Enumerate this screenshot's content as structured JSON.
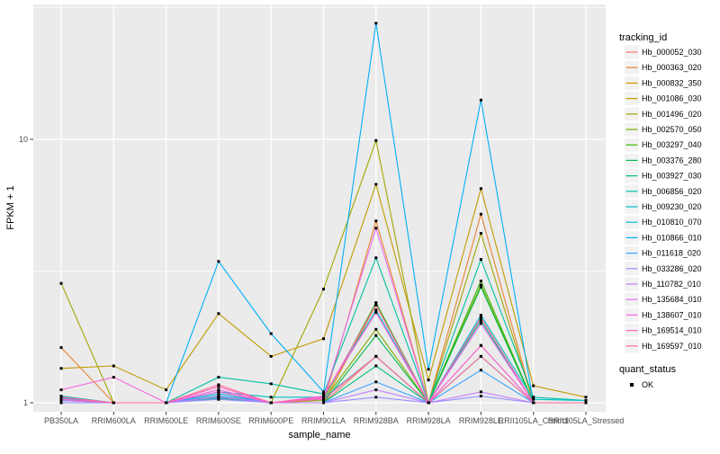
{
  "chart_data": {
    "type": "line",
    "xlabel": "sample_name",
    "ylabel": "FPKM + 1",
    "y_scale": "log10",
    "y_ticks": [
      "1",
      "10"
    ],
    "ylim": [
      0.93,
      31
    ],
    "categories": [
      "PB350LA",
      "RRIM600LA",
      "RRIM600LE",
      "RRIM600SE",
      "RRIM600PE",
      "RRIM901LA",
      "RRIM928BA",
      "RRIM928LA",
      "RRIM928LE",
      "RRII105LA_Control",
      "RRII105LA_Stressed"
    ],
    "series": [
      {
        "name": "Hb_000052_030",
        "color": "#F8766D",
        "values": [
          1.05,
          1.0,
          1.0,
          1.06,
          1.0,
          1.0,
          1.5,
          1.0,
          1.65,
          1.0,
          1.0
        ]
      },
      {
        "name": "Hb_000363_020",
        "color": "#EA8331",
        "values": [
          1.62,
          1.0,
          1.0,
          1.08,
          1.0,
          1.0,
          4.9,
          1.0,
          5.2,
          1.0,
          1.0
        ]
      },
      {
        "name": "Hb_000832_350",
        "color": "#D89000",
        "values": [
          1.0,
          1.0,
          1.0,
          1.1,
          1.0,
          1.0,
          2.35,
          1.0,
          2.1,
          1.0,
          1.0
        ]
      },
      {
        "name": "Hb_001086_030",
        "color": "#C09B00",
        "values": [
          1.35,
          1.38,
          1.12,
          2.18,
          1.5,
          1.75,
          6.75,
          1.22,
          6.5,
          1.16,
          1.05
        ]
      },
      {
        "name": "Hb_001496_020",
        "color": "#A3A500",
        "values": [
          2.84,
          1.0,
          1.0,
          1.05,
          1.0,
          2.7,
          9.9,
          1.0,
          4.4,
          1.0,
          1.0
        ]
      },
      {
        "name": "Hb_002570_050",
        "color": "#7CAE00",
        "values": [
          1.05,
          1.0,
          1.0,
          1.05,
          1.0,
          1.02,
          1.9,
          1.0,
          2.8,
          1.0,
          1.0
        ]
      },
      {
        "name": "Hb_003297_040",
        "color": "#39B600",
        "values": [
          1.04,
          1.0,
          1.0,
          1.05,
          1.0,
          1.03,
          2.4,
          1.0,
          2.9,
          1.0,
          1.0
        ]
      },
      {
        "name": "Hb_003376_280",
        "color": "#00BB4E",
        "values": [
          1.03,
          1.0,
          1.0,
          1.04,
          1.0,
          1.0,
          1.8,
          1.0,
          2.75,
          1.0,
          1.0
        ]
      },
      {
        "name": "Hb_003927_030",
        "color": "#00BF7D",
        "values": [
          1.02,
          1.0,
          1.0,
          1.04,
          1.0,
          1.0,
          1.38,
          1.0,
          2.05,
          1.0,
          1.0
        ]
      },
      {
        "name": "Hb_006856_020",
        "color": "#00C1A3",
        "values": [
          1.06,
          1.0,
          1.0,
          1.25,
          1.18,
          1.08,
          3.55,
          1.0,
          3.5,
          1.05,
          1.02
        ]
      },
      {
        "name": "Hb_009230_020",
        "color": "#00BFC4",
        "values": [
          1.03,
          1.0,
          1.0,
          1.1,
          1.05,
          1.05,
          2.25,
          1.0,
          2.15,
          1.03,
          1.02
        ]
      },
      {
        "name": "Hb_010810_070",
        "color": "#00BAE0",
        "values": [
          1.02,
          1.0,
          1.0,
          1.08,
          1.0,
          1.04,
          1.5,
          1.0,
          1.5,
          1.0,
          1.0
        ]
      },
      {
        "name": "Hb_010866_010",
        "color": "#00B0F6",
        "values": [
          1.05,
          1.0,
          1.0,
          3.44,
          1.83,
          1.1,
          27.6,
          1.34,
          14.1,
          1.0,
          1.0
        ]
      },
      {
        "name": "Hb_011618_020",
        "color": "#35A2FF",
        "values": [
          1.04,
          1.0,
          1.0,
          1.06,
          1.0,
          1.0,
          1.2,
          1.0,
          1.33,
          1.0,
          1.0
        ]
      },
      {
        "name": "Hb_033286_020",
        "color": "#9590FF",
        "values": [
          1.0,
          1.0,
          1.0,
          1.03,
          1.0,
          1.0,
          1.05,
          1.0,
          1.06,
          1.0,
          1.0
        ]
      },
      {
        "name": "Hb_110782_010",
        "color": "#C77CFF",
        "values": [
          1.02,
          1.0,
          1.0,
          1.05,
          1.0,
          1.0,
          1.12,
          1.0,
          1.1,
          1.0,
          1.0
        ]
      },
      {
        "name": "Hb_135684_010",
        "color": "#E76BF3",
        "values": [
          1.05,
          1.0,
          1.0,
          1.1,
          1.0,
          1.04,
          4.6,
          1.0,
          2.0,
          1.0,
          1.0
        ]
      },
      {
        "name": "Hb_138607_010",
        "color": "#FA62DB",
        "values": [
          1.12,
          1.25,
          1.0,
          1.12,
          1.0,
          1.06,
          2.2,
          1.0,
          1.65,
          1.0,
          1.0
        ]
      },
      {
        "name": "Hb_169514_010",
        "color": "#FF62BC",
        "values": [
          1.03,
          1.0,
          1.0,
          1.15,
          1.0,
          1.05,
          2.35,
          1.0,
          2.1,
          1.0,
          1.0
        ]
      },
      {
        "name": "Hb_169597_010",
        "color": "#FF6A98",
        "values": [
          1.05,
          1.0,
          1.0,
          1.17,
          1.0,
          1.03,
          1.5,
          1.0,
          1.5,
          1.0,
          1.0
        ]
      }
    ],
    "legend_color": {
      "title": "tracking_id"
    },
    "legend_shape": {
      "title": "quant_status",
      "items": [
        {
          "label": "OK",
          "color": "#000000"
        }
      ]
    },
    "point_color": "#000000",
    "panel_background": "#EBEBEB",
    "grid_color": "#FFFFFF",
    "tick_label_color": "#4D4D4D",
    "legend_position": "right",
    "grid": "on"
  }
}
